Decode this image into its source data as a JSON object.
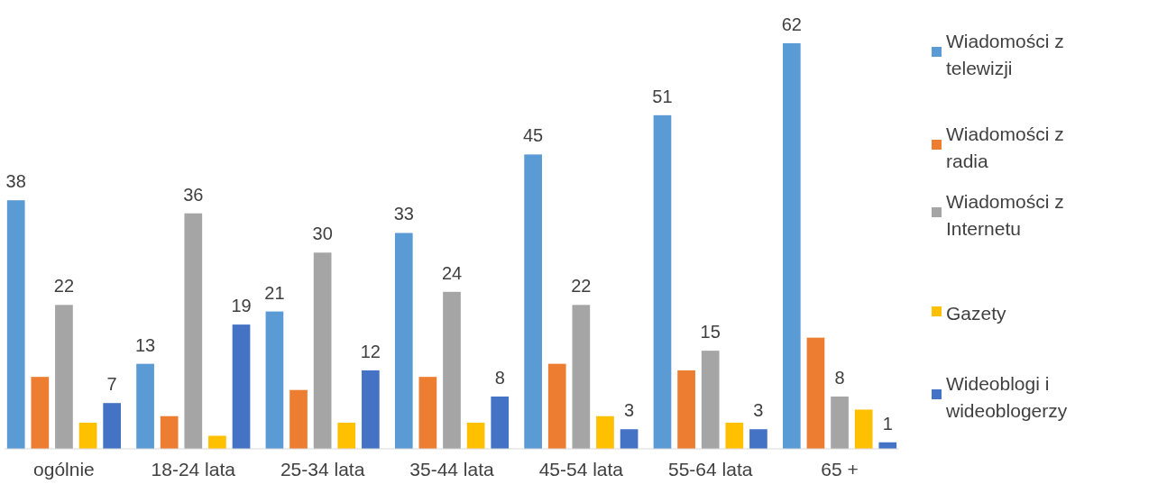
{
  "chart_data": {
    "type": "bar",
    "categories": [
      "ogólnie",
      "18-24 lata",
      "25-34 lata",
      "35-44 lata",
      "45-54 lata",
      "55-64 lata",
      "65 +"
    ],
    "series": [
      {
        "name": "Wiadomości z telewizji",
        "color": "#5b9bd5",
        "values": [
          38,
          13,
          21,
          33,
          45,
          51,
          62
        ],
        "value_labels": [
          "38",
          "13",
          "21",
          "33",
          "45",
          "51",
          "62"
        ]
      },
      {
        "name": "Wiadomości z radia",
        "color": "#ed7d31",
        "values": [
          11,
          5,
          9,
          11,
          13,
          12,
          17
        ],
        "value_labels": [
          null,
          null,
          null,
          null,
          null,
          null,
          null
        ]
      },
      {
        "name": "Wiadomości z Internetu",
        "color": "#a5a5a5",
        "values": [
          22,
          36,
          30,
          24,
          22,
          15,
          8
        ],
        "value_labels": [
          "22",
          "36",
          "30",
          "24",
          "22",
          "15",
          "8"
        ]
      },
      {
        "name": "Gazety",
        "color": "#ffc000",
        "values": [
          4,
          2,
          4,
          4,
          5,
          4,
          6
        ],
        "value_labels": [
          null,
          null,
          null,
          null,
          null,
          null,
          null
        ]
      },
      {
        "name": "Wideoblogi i wideoblogerzy",
        "color": "#4472c4",
        "values": [
          7,
          19,
          12,
          8,
          3,
          3,
          1
        ],
        "value_labels": [
          "7",
          "19",
          "12",
          "8",
          "3",
          "3",
          "1"
        ]
      }
    ],
    "legend": "right"
  }
}
